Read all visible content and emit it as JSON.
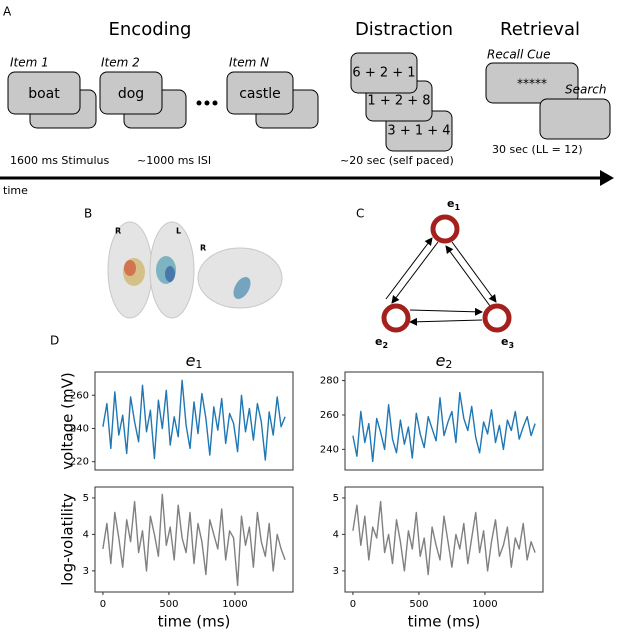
{
  "panel_labels": [
    "A",
    "B",
    "C",
    "D"
  ],
  "encoding": {
    "title": "Encoding",
    "items": [
      {
        "label": "Item 1",
        "word": "boat"
      },
      {
        "label": "Item 2",
        "word": "dog"
      },
      {
        "label": "Item N",
        "word": "castle"
      }
    ],
    "stimulus": "1600 ms Stimulus",
    "isi": "~1000 ms ISI"
  },
  "distraction": {
    "title": "Distraction",
    "problems": [
      "6 + 2 + 1",
      "1 + 2 + 8",
      "3 + 1 + 4"
    ],
    "duration": "~20 sec (self paced)"
  },
  "retrieval": {
    "title": "Retrieval",
    "cue_label": "Recall Cue",
    "cue": "*****",
    "search": "Search",
    "duration": "30 sec (LL = 12)"
  },
  "timeline_label": "time",
  "brain_labels": [
    "R",
    "L",
    "R"
  ],
  "network": {
    "nodes": [
      {
        "base": "e",
        "sub": "1"
      },
      {
        "base": "e",
        "sub": "2"
      },
      {
        "base": "e",
        "sub": "3"
      }
    ]
  },
  "chart_data": [
    {
      "type": "line",
      "title": "e",
      "title_subscript": "1",
      "ylabel": "voltage (mV)",
      "color": "#1f77b4",
      "x": [
        0,
        30,
        60,
        90,
        120,
        150,
        180,
        210,
        240,
        270,
        300,
        330,
        360,
        390,
        420,
        450,
        480,
        510,
        540,
        570,
        600,
        630,
        660,
        690,
        720,
        750,
        780,
        810,
        840,
        870,
        900,
        930,
        960,
        990,
        1020,
        1050,
        1080,
        1110,
        1140,
        1170,
        1200,
        1230,
        1260,
        1290,
        1320,
        1350,
        1380
      ],
      "values": [
        241,
        255,
        228,
        262,
        236,
        248,
        225,
        259,
        244,
        232,
        266,
        238,
        251,
        222,
        257,
        240,
        263,
        230,
        247,
        235,
        269,
        242,
        228,
        256,
        237,
        261,
        246,
        224,
        253,
        239,
        258,
        231,
        249,
        243,
        226,
        260,
        238,
        252,
        233,
        255,
        244,
        221,
        250,
        236,
        259,
        241,
        247
      ],
      "xlim": [
        -60,
        1440
      ],
      "ylim": [
        215,
        274
      ],
      "yticks": [
        220,
        240,
        260
      ]
    },
    {
      "type": "line",
      "title": "e",
      "title_subscript": "2",
      "color": "#1f77b4",
      "x": [
        0,
        30,
        60,
        90,
        120,
        150,
        180,
        210,
        240,
        270,
        300,
        330,
        360,
        390,
        420,
        450,
        480,
        510,
        540,
        570,
        600,
        630,
        660,
        690,
        720,
        750,
        780,
        810,
        840,
        870,
        900,
        930,
        960,
        990,
        1020,
        1050,
        1080,
        1110,
        1140,
        1170,
        1200,
        1230,
        1260,
        1290,
        1320,
        1350,
        1380
      ],
      "values": [
        248,
        236,
        262,
        244,
        255,
        233,
        258,
        250,
        240,
        266,
        246,
        238,
        257,
        243,
        253,
        235,
        261,
        249,
        241,
        259,
        252,
        245,
        270,
        248,
        256,
        262,
        244,
        273,
        258,
        251,
        265,
        247,
        238,
        256,
        249,
        263,
        244,
        254,
        240,
        257,
        251,
        262,
        246,
        253,
        259,
        248,
        255
      ],
      "xlim": [
        -60,
        1440
      ],
      "ylim": [
        228,
        285
      ],
      "yticks": [
        240,
        260,
        280
      ]
    },
    {
      "type": "line",
      "ylabel": "log-volatility",
      "xlabel": "time (ms)",
      "color": "#808080",
      "x": [
        0,
        30,
        60,
        90,
        120,
        150,
        180,
        210,
        240,
        270,
        300,
        330,
        360,
        390,
        420,
        450,
        480,
        510,
        540,
        570,
        600,
        630,
        660,
        690,
        720,
        750,
        780,
        810,
        840,
        870,
        900,
        930,
        960,
        990,
        1020,
        1050,
        1080,
        1110,
        1140,
        1170,
        1200,
        1230,
        1260,
        1290,
        1320,
        1350,
        1380
      ],
      "values": [
        3.6,
        4.3,
        3.2,
        4.6,
        3.9,
        3.1,
        4.4,
        3.8,
        4.9,
        3.5,
        4.1,
        3.0,
        4.5,
        4.0,
        3.4,
        5.1,
        3.7,
        4.2,
        3.3,
        4.8,
        3.9,
        3.5,
        4.6,
        3.2,
        4.3,
        3.8,
        2.9,
        4.4,
        4.0,
        3.6,
        4.7,
        3.3,
        4.1,
        3.9,
        2.6,
        4.5,
        3.7,
        4.2,
        3.1,
        4.6,
        3.8,
        3.4,
        4.3,
        3.0,
        4.0,
        3.6,
        3.3
      ],
      "xlim": [
        -60,
        1440
      ],
      "ylim": [
        2.42,
        5.3
      ],
      "xticks": [
        0,
        500,
        1000
      ],
      "yticks": [
        3,
        4,
        5
      ]
    },
    {
      "type": "line",
      "xlabel": "time (ms)",
      "color": "#808080",
      "x": [
        0,
        30,
        60,
        90,
        120,
        150,
        180,
        210,
        240,
        270,
        300,
        330,
        360,
        390,
        420,
        450,
        480,
        510,
        540,
        570,
        600,
        630,
        660,
        690,
        720,
        750,
        780,
        810,
        840,
        870,
        900,
        930,
        960,
        990,
        1020,
        1050,
        1080,
        1110,
        1140,
        1170,
        1200,
        1230,
        1260,
        1290,
        1320,
        1350,
        1380
      ],
      "values": [
        4.1,
        4.8,
        3.7,
        4.5,
        3.3,
        4.2,
        3.9,
        4.9,
        3.5,
        4.0,
        3.2,
        4.4,
        3.8,
        3.0,
        4.1,
        3.6,
        4.6,
        3.4,
        3.9,
        2.9,
        4.2,
        3.7,
        3.3,
        4.5,
        3.8,
        3.1,
        4.0,
        3.6,
        4.3,
        3.2,
        3.9,
        4.6,
        3.5,
        4.1,
        3.0,
        3.8,
        4.4,
        3.4,
        3.7,
        4.2,
        3.1,
        3.9,
        3.6,
        4.3,
        3.3,
        3.8,
        3.5
      ],
      "xlim": [
        -60,
        1440
      ],
      "ylim": [
        2.42,
        5.3
      ],
      "xticks": [
        0,
        500,
        1000
      ],
      "yticks": [
        3,
        4,
        5
      ]
    }
  ]
}
